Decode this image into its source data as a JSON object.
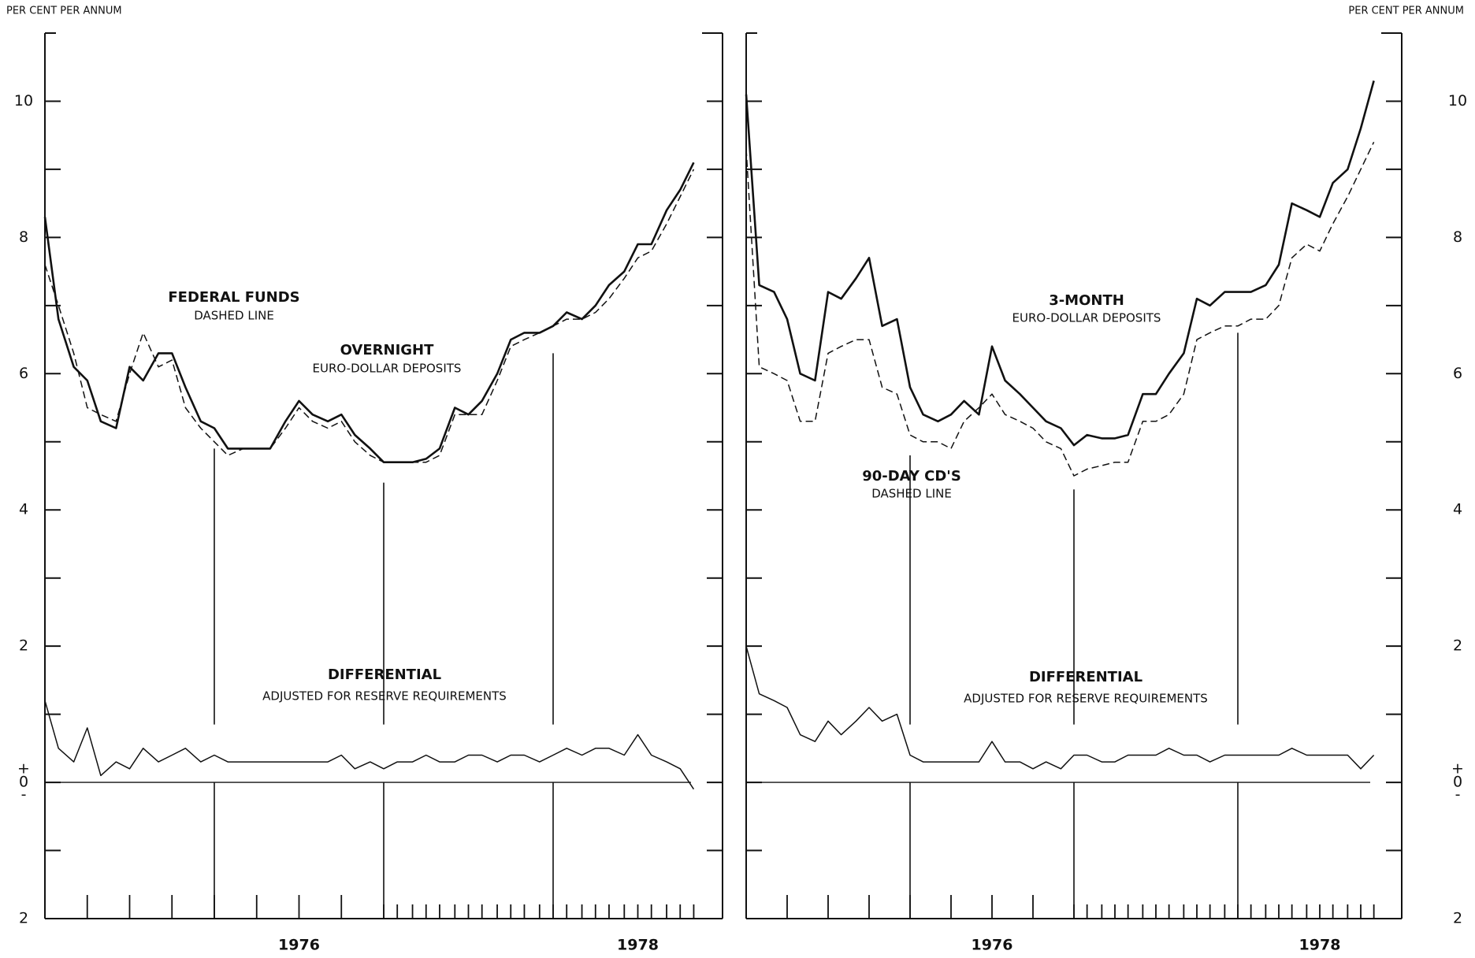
{
  "chart_data": [
    {
      "type": "line",
      "ylabel": "PER CENT PER ANNUM",
      "axis_side": "left",
      "xlim": [
        1975,
        1979
      ],
      "ylim": [
        -2,
        11
      ],
      "xticks": [
        {
          "value": 1976.5,
          "label": "1976"
        },
        {
          "value": 1978.5,
          "label": "1978"
        }
      ],
      "year_lines": [
        1976,
        1977,
        1978
      ],
      "yticks": [
        {
          "value": -2,
          "label": "2"
        },
        0,
        2,
        4,
        6,
        8,
        10
      ],
      "yminor": [
        -1,
        1,
        3,
        5,
        7,
        9
      ],
      "zero_signs": [
        "+",
        "-"
      ],
      "x": [
        1975.0,
        1975.08,
        1975.17,
        1975.25,
        1975.33,
        1975.42,
        1975.5,
        1975.58,
        1975.67,
        1975.75,
        1975.83,
        1975.92,
        1976.0,
        1976.08,
        1976.17,
        1976.25,
        1976.33,
        1976.42,
        1976.5,
        1976.58,
        1976.67,
        1976.75,
        1976.83,
        1976.92,
        1977.0,
        1977.08,
        1977.17,
        1977.25,
        1977.33,
        1977.42,
        1977.5,
        1977.58,
        1977.67,
        1977.75,
        1977.83,
        1977.92,
        1978.0,
        1978.08,
        1978.17,
        1978.25,
        1978.33,
        1978.42,
        1978.5,
        1978.58,
        1978.67,
        1978.75,
        1978.83
      ],
      "series": [
        {
          "color": "#111111",
          "dash": false,
          "values": [
            8.3,
            6.8,
            6.1,
            5.9,
            5.3,
            5.2,
            6.1,
            5.9,
            6.3,
            6.3,
            5.8,
            5.3,
            5.2,
            4.9,
            4.9,
            4.9,
            4.9,
            5.3,
            5.6,
            5.4,
            5.3,
            5.4,
            5.1,
            4.9,
            4.7,
            4.7,
            4.7,
            4.75,
            4.9,
            5.5,
            5.4,
            5.6,
            6.0,
            6.5,
            6.6,
            6.6,
            6.7,
            6.9,
            6.8,
            7.0,
            7.3,
            7.5,
            7.9,
            7.9,
            8.4,
            8.7,
            9.1
          ]
        },
        {
          "color": "#111111",
          "dash": true,
          "values": [
            7.6,
            7.0,
            6.3,
            5.5,
            5.4,
            5.3,
            6.0,
            6.6,
            6.1,
            6.2,
            5.5,
            5.2,
            5.0,
            4.8,
            4.9,
            4.9,
            4.9,
            5.2,
            5.5,
            5.3,
            5.2,
            5.3,
            5.0,
            4.8,
            4.7,
            4.7,
            4.7,
            4.7,
            4.8,
            5.4,
            5.4,
            5.4,
            5.9,
            6.4,
            6.5,
            6.6,
            6.7,
            6.8,
            6.8,
            6.9,
            7.1,
            7.4,
            7.7,
            7.8,
            8.2,
            8.6,
            9.0
          ]
        },
        {
          "color": "#111111",
          "dash": false,
          "values": [
            1.2,
            0.5,
            0.3,
            0.8,
            0.1,
            0.3,
            0.2,
            0.5,
            0.3,
            0.4,
            0.5,
            0.3,
            0.4,
            0.3,
            0.3,
            0.3,
            0.3,
            0.3,
            0.3,
            0.3,
            0.3,
            0.4,
            0.2,
            0.3,
            0.2,
            0.3,
            0.3,
            0.4,
            0.3,
            0.3,
            0.4,
            0.4,
            0.3,
            0.4,
            0.4,
            0.3,
            0.4,
            0.5,
            0.4,
            0.5,
            0.5,
            0.4,
            0.7,
            0.4,
            0.3,
            0.2,
            -0.1
          ]
        }
      ],
      "annotations": [
        "FEDERAL FUNDS",
        "DASHED LINE",
        "OVERNIGHT",
        "EURO-DOLLAR DEPOSITS",
        "DIFFERENTIAL",
        "ADJUSTED FOR RESERVE REQUIREMENTS"
      ]
    },
    {
      "type": "line",
      "ylabel": "PER CENT PER ANNUM",
      "axis_side": "right",
      "xlim": [
        1975,
        1979
      ],
      "ylim": [
        -2,
        11
      ],
      "xticks": [
        {
          "value": 1976.5,
          "label": "1976"
        },
        {
          "value": 1978.5,
          "label": "1978"
        }
      ],
      "year_lines": [
        1976,
        1977,
        1978
      ],
      "yticks": [
        {
          "value": -2,
          "label": "2"
        },
        0,
        2,
        4,
        6,
        8,
        10
      ],
      "yminor": [
        -1,
        1,
        3,
        5,
        7,
        9
      ],
      "zero_signs": [
        "+",
        "-"
      ],
      "x": [
        1975.0,
        1975.08,
        1975.17,
        1975.25,
        1975.33,
        1975.42,
        1975.5,
        1975.58,
        1975.67,
        1975.75,
        1975.83,
        1975.92,
        1976.0,
        1976.08,
        1976.17,
        1976.25,
        1976.33,
        1976.42,
        1976.5,
        1976.58,
        1976.67,
        1976.75,
        1976.83,
        1976.92,
        1977.0,
        1977.08,
        1977.17,
        1977.25,
        1977.33,
        1977.42,
        1977.5,
        1977.58,
        1977.67,
        1977.75,
        1977.83,
        1977.92,
        1978.0,
        1978.08,
        1978.17,
        1978.25,
        1978.33,
        1978.42,
        1978.5,
        1978.58,
        1978.67,
        1978.75,
        1978.83
      ],
      "series": [
        {
          "color": "#111111",
          "dash": false,
          "values": [
            10.1,
            7.3,
            7.2,
            6.8,
            6.0,
            5.9,
            7.2,
            7.1,
            7.4,
            7.7,
            6.7,
            6.8,
            5.8,
            5.4,
            5.3,
            5.4,
            5.6,
            5.4,
            6.4,
            5.9,
            5.7,
            5.5,
            5.3,
            5.2,
            4.95,
            5.1,
            5.05,
            5.05,
            5.1,
            5.7,
            5.7,
            6.0,
            6.3,
            7.1,
            7.0,
            7.2,
            7.2,
            7.2,
            7.3,
            7.6,
            8.5,
            8.4,
            8.3,
            8.8,
            9.0,
            9.6,
            10.3
          ]
        },
        {
          "color": "#111111",
          "dash": true,
          "values": [
            9.3,
            6.1,
            6.0,
            5.9,
            5.3,
            5.3,
            6.3,
            6.4,
            6.5,
            6.5,
            5.8,
            5.7,
            5.1,
            5.0,
            5.0,
            4.9,
            5.3,
            5.5,
            5.7,
            5.4,
            5.3,
            5.2,
            5.0,
            4.9,
            4.5,
            4.6,
            4.65,
            4.7,
            4.7,
            5.3,
            5.3,
            5.4,
            5.7,
            6.5,
            6.6,
            6.7,
            6.7,
            6.8,
            6.8,
            7.0,
            7.7,
            7.9,
            7.8,
            8.2,
            8.6,
            9.0,
            9.4
          ]
        },
        {
          "color": "#111111",
          "dash": false,
          "values": [
            2.0,
            1.3,
            1.2,
            1.1,
            0.7,
            0.6,
            0.9,
            0.7,
            0.9,
            1.1,
            0.9,
            1.0,
            0.4,
            0.3,
            0.3,
            0.3,
            0.3,
            0.3,
            0.6,
            0.3,
            0.3,
            0.2,
            0.3,
            0.2,
            0.4,
            0.4,
            0.3,
            0.3,
            0.4,
            0.4,
            0.4,
            0.5,
            0.4,
            0.4,
            0.3,
            0.4,
            0.4,
            0.4,
            0.4,
            0.4,
            0.5,
            0.4,
            0.4,
            0.4,
            0.4,
            0.2,
            0.4
          ]
        }
      ],
      "annotations": [
        "3-MONTH",
        "EURO-DOLLAR DEPOSITS",
        "90-DAY CD'S",
        "DASHED LINE",
        "DIFFERENTIAL",
        "ADJUSTED FOR RESERVE REQUIREMENTS"
      ]
    }
  ]
}
